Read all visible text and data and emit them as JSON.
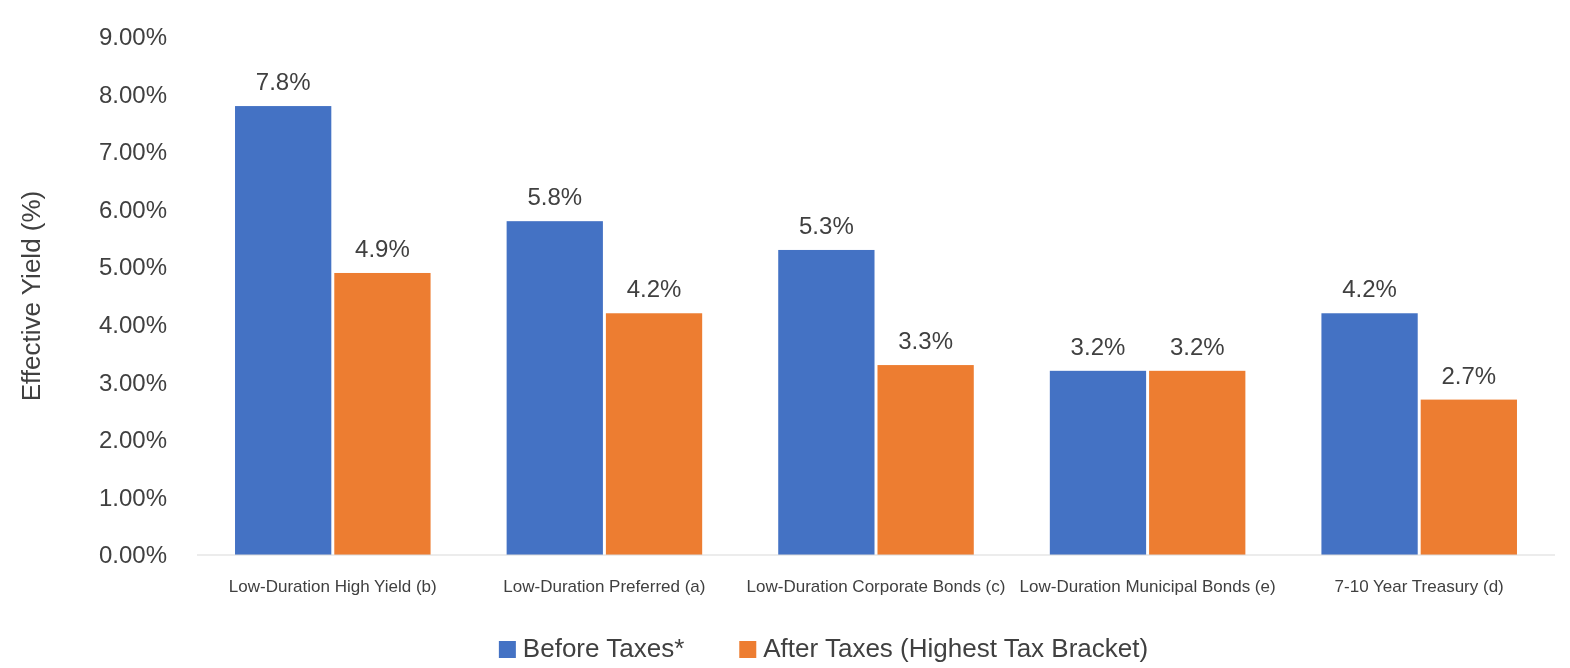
{
  "chart_data": {
    "type": "bar",
    "ylabel": "Effective Yield (%)",
    "categories": [
      "Low-Duration High Yield (b)",
      "Low-Duration Preferred (a)",
      "Low-Duration Corporate Bonds (c)",
      "Low-Duration Municipal Bonds (e)",
      "7-10 Year Treasury (d)"
    ],
    "series": [
      {
        "name": "Before Taxes*",
        "color": "#4472c4",
        "values": [
          7.8,
          5.8,
          5.3,
          3.2,
          4.2
        ],
        "value_labels": [
          "7.8%",
          "5.8%",
          "5.3%",
          "3.2%",
          "4.2%"
        ]
      },
      {
        "name": "After Taxes (Highest Tax Bracket)",
        "color": "#ed7d31",
        "values": [
          4.9,
          4.2,
          3.3,
          3.2,
          2.7
        ],
        "value_labels": [
          "4.9%",
          "4.2%",
          "3.3%",
          "3.2%",
          "2.7%"
        ]
      }
    ],
    "ylim": [
      0,
      9
    ],
    "yticks": [
      {
        "value": 0,
        "label": "0.00%"
      },
      {
        "value": 1,
        "label": "1.00%"
      },
      {
        "value": 2,
        "label": "2.00%"
      },
      {
        "value": 3,
        "label": "3.00%"
      },
      {
        "value": 4,
        "label": "4.00%"
      },
      {
        "value": 5,
        "label": "5.00%"
      },
      {
        "value": 6,
        "label": "6.00%"
      },
      {
        "value": 7,
        "label": "7.00%"
      },
      {
        "value": 8,
        "label": "8.00%"
      },
      {
        "value": 9,
        "label": "9.00%"
      }
    ],
    "grid": false,
    "legend": "bottom"
  }
}
